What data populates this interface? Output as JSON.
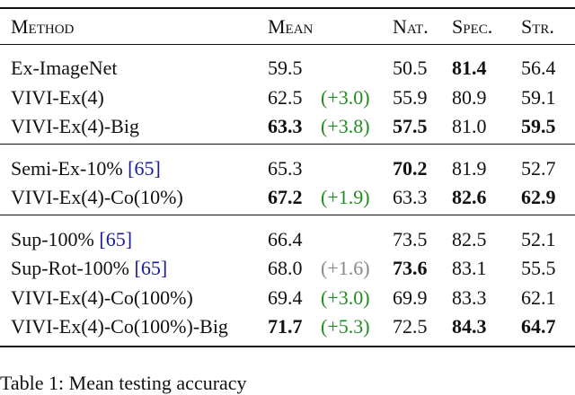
{
  "table": {
    "header": {
      "method": "Method",
      "mean": "Mean",
      "nat": "Nat.",
      "spec": "Spec.",
      "str": "Str."
    },
    "groups": [
      {
        "rows": [
          {
            "method": "Ex-ImageNet",
            "mean": "59.5",
            "nat": "50.5",
            "spec": "81.4",
            "str": "56.4",
            "bold": [
              "spec"
            ]
          },
          {
            "method": "VIVI-Ex(4)",
            "mean": "62.5",
            "delta": "(+3.0)",
            "delta_color": "#228b22",
            "nat": "55.9",
            "spec": "80.9",
            "str": "59.1",
            "bold": []
          },
          {
            "method": "VIVI-Ex(4)-Big",
            "mean": "63.3",
            "delta": "(+3.8)",
            "delta_color": "#228b22",
            "nat": "57.5",
            "spec": "81.0",
            "str": "59.5",
            "bold": [
              "mean",
              "nat",
              "str"
            ]
          }
        ]
      },
      {
        "rows": [
          {
            "method": "Semi-Ex-10%",
            "cite": "[65]",
            "mean": "65.3",
            "nat": "70.2",
            "spec": "81.9",
            "str": "52.7",
            "bold": [
              "nat"
            ]
          },
          {
            "method": "VIVI-Ex(4)-Co(10%)",
            "mean": "67.2",
            "delta": "(+1.9)",
            "delta_color": "#228b22",
            "nat": "63.3",
            "spec": "82.6",
            "str": "62.9",
            "bold": [
              "mean",
              "spec",
              "str"
            ]
          }
        ]
      },
      {
        "rows": [
          {
            "method": "Sup-100%",
            "cite": "[65]",
            "mean": "66.4",
            "nat": "73.5",
            "spec": "82.5",
            "str": "52.1",
            "bold": []
          },
          {
            "method": "Sup-Rot-100%",
            "cite": "[65]",
            "mean": "68.0",
            "delta": "(+1.6)",
            "delta_color": "#888888",
            "nat": "73.6",
            "spec": "83.1",
            "str": "55.5",
            "bold": [
              "nat"
            ]
          },
          {
            "method": "VIVI-Ex(4)-Co(100%)",
            "mean": "69.4",
            "delta": "(+3.0)",
            "delta_color": "#228b22",
            "nat": "69.9",
            "spec": "83.3",
            "str": "62.1",
            "bold": []
          },
          {
            "method": "VIVI-Ex(4)-Co(100%)-Big",
            "mean": "71.7",
            "delta": "(+5.3)",
            "delta_color": "#228b22",
            "nat": "72.5",
            "spec": "84.3",
            "str": "64.7",
            "bold": [
              "mean",
              "spec",
              "str"
            ]
          }
        ]
      }
    ],
    "cite_color": "#1a1a9e",
    "caption": "Table 1: Mean testing accuracy"
  }
}
